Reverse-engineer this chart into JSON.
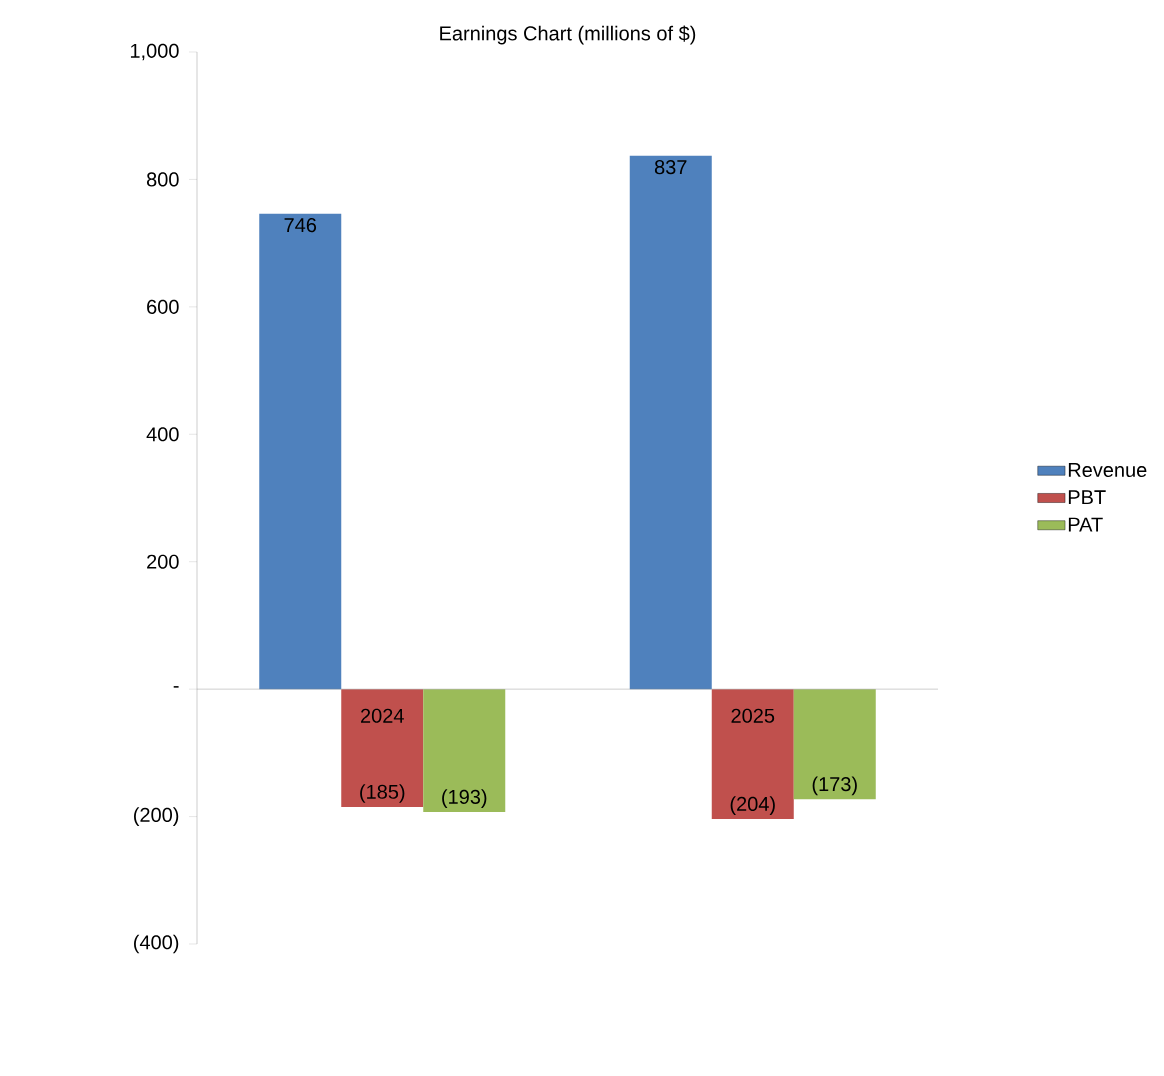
{
  "chart_data": {
    "type": "bar",
    "title": "Earnings Chart (millions of $)",
    "categories": [
      "2024",
      "2025"
    ],
    "series": [
      {
        "name": "Revenue",
        "color": "#4f81bd",
        "values": [
          746,
          837
        ],
        "value_labels": [
          "746",
          "837"
        ]
      },
      {
        "name": "PBT",
        "color": "#c0504d",
        "values": [
          -185,
          -204
        ],
        "value_labels": [
          "(185)",
          "(204)"
        ]
      },
      {
        "name": "PAT",
        "color": "#9bbb59",
        "values": [
          -193,
          -173
        ],
        "value_labels": [
          "(193)",
          "(173)"
        ]
      }
    ],
    "ylim": [
      -400,
      1000
    ],
    "yticks": [
      {
        "value": -400,
        "label": "(400)"
      },
      {
        "value": -200,
        "label": "(200)"
      },
      {
        "value": 0,
        "label": "-"
      },
      {
        "value": 200,
        "label": "200"
      },
      {
        "value": 400,
        "label": "400"
      },
      {
        "value": 600,
        "label": "600"
      },
      {
        "value": 800,
        "label": "800"
      },
      {
        "value": 1000,
        "label": "1,000"
      }
    ],
    "legend": "right",
    "grid": false
  }
}
